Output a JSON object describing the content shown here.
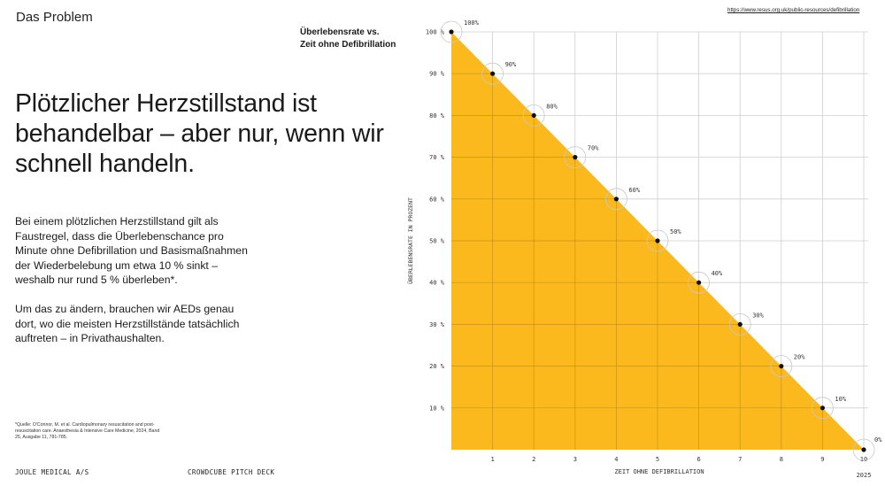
{
  "header": {
    "section_title": "Das Problem",
    "source_link": "https://www.resus.org.uk/public-resources/defibrillation"
  },
  "caption": {
    "line1": "Überlebensrate vs.",
    "line2": "Zeit ohne Defibrillation"
  },
  "headline": "Plötzlicher Herzstillstand ist behandelbar – aber nur, wenn wir schnell handeln.",
  "body": {
    "paragraph1": "Bei einem plötzlichen Herzstillstand gilt als Faustregel, dass die Überlebenschance pro Minute ohne Defibrillation und Basismaßnahmen der Wiederbelebung um etwa 10 % sinkt – weshalb nur rund 5 % überleben*.",
    "paragraph2": "Um das zu ändern, brauchen wir AEDs genau dort, wo die meisten Herzstillstände tatsächlich auftreten – in Privathaushalten."
  },
  "footnote": "*Quelle: O'Connor, M. et al. Cardiopulmonary resuscitation and post-resuscitation care. Anaesthesia & Intensive Care Medicine, 2024, Band 25, Ausgabe 11, 781-785.",
  "footer": {
    "company": "JOULE MEDICAL A/S",
    "deck": "CROWDCUBE PITCH DECK"
  },
  "colors": {
    "fill": "#FBB91E",
    "grid": "#cfcfcf",
    "grid_on_fill": "#b98a1a",
    "point": "#111111",
    "text": "#1a1a1a"
  },
  "chart_data": {
    "type": "area",
    "title": "Überlebensrate vs. Zeit ohne Defibrillation",
    "xlabel": "ZEIT OHNE DEFIBRILLATION",
    "ylabel": "ÜBERLEBENSRATE IN PROZENT",
    "x": [
      0,
      1,
      2,
      3,
      4,
      5,
      6,
      7,
      8,
      9,
      10
    ],
    "values": [
      100,
      90,
      80,
      70,
      60,
      50,
      40,
      30,
      20,
      10,
      0
    ],
    "point_labels": [
      "100%",
      "90%",
      "80%",
      "70%",
      "60%",
      "50%",
      "40%",
      "30%",
      "20%",
      "10%",
      "0%"
    ],
    "x_tick_labels": [
      "1",
      "2",
      "3",
      "4",
      "5",
      "6",
      "7",
      "8",
      "9",
      "10"
    ],
    "y_tick_labels": [
      "100 %",
      "90 %",
      "80 %",
      "70 %",
      "60 %",
      "50 %",
      "40 %",
      "30 %",
      "20 %",
      "10 %"
    ],
    "xlim": [
      0,
      10
    ],
    "ylim": [
      0,
      100
    ],
    "grid": true,
    "legend": null,
    "annotation": "2025"
  }
}
